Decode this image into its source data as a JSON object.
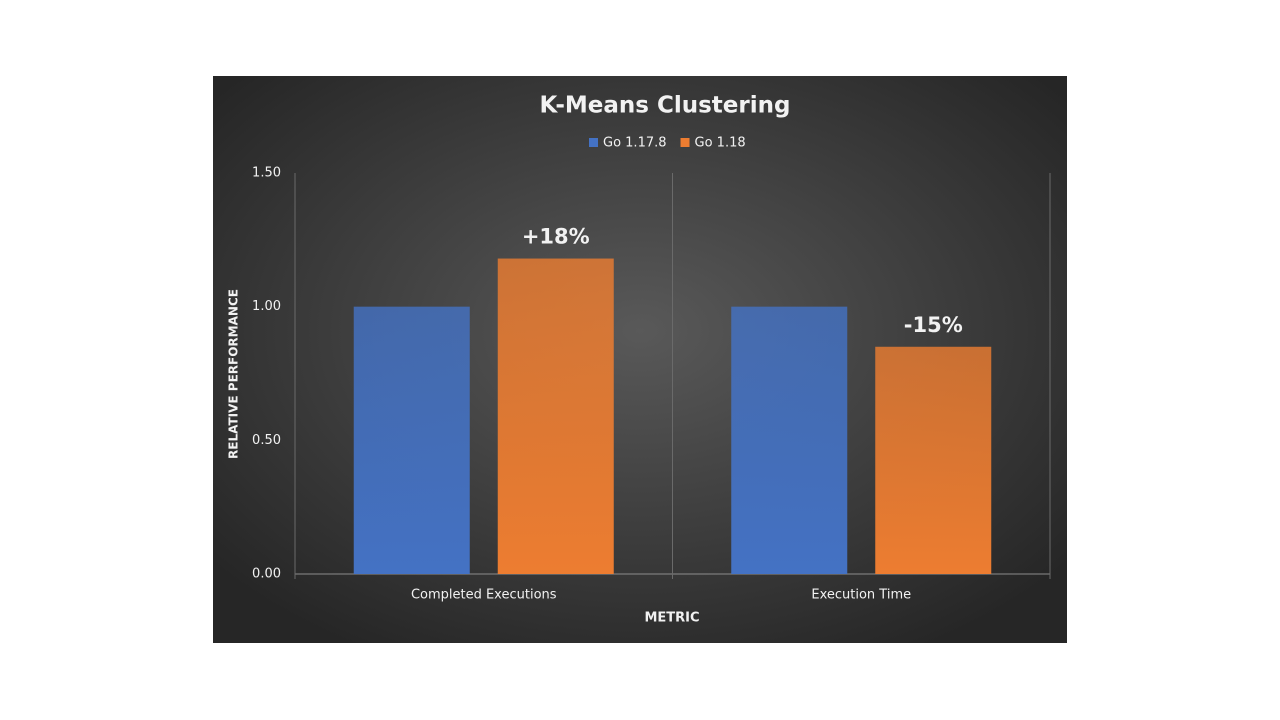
{
  "chart_data": {
    "type": "bar",
    "title": "K-Means Clustering",
    "x_label": "METRIC",
    "y_label": "RELATIVE PERFORMANCE",
    "categories": [
      "Completed Executions",
      "Execution Time"
    ],
    "series": [
      {
        "name": "Go 1.17.8",
        "color": "#4472c4",
        "values": [
          1.0,
          1.0
        ]
      },
      {
        "name": "Go 1.18",
        "color": "#ed7d31",
        "values": [
          1.18,
          0.85
        ]
      }
    ],
    "annotations": [
      "+18%",
      "-15%"
    ],
    "ylim": [
      0,
      1.5
    ],
    "yticks": [
      {
        "value": 0,
        "label": "0.00"
      },
      {
        "value": 0.5,
        "label": "0.50"
      },
      {
        "value": 1.0,
        "label": "1.00"
      },
      {
        "value": 1.5,
        "label": "1.50"
      }
    ],
    "legend": "top"
  }
}
